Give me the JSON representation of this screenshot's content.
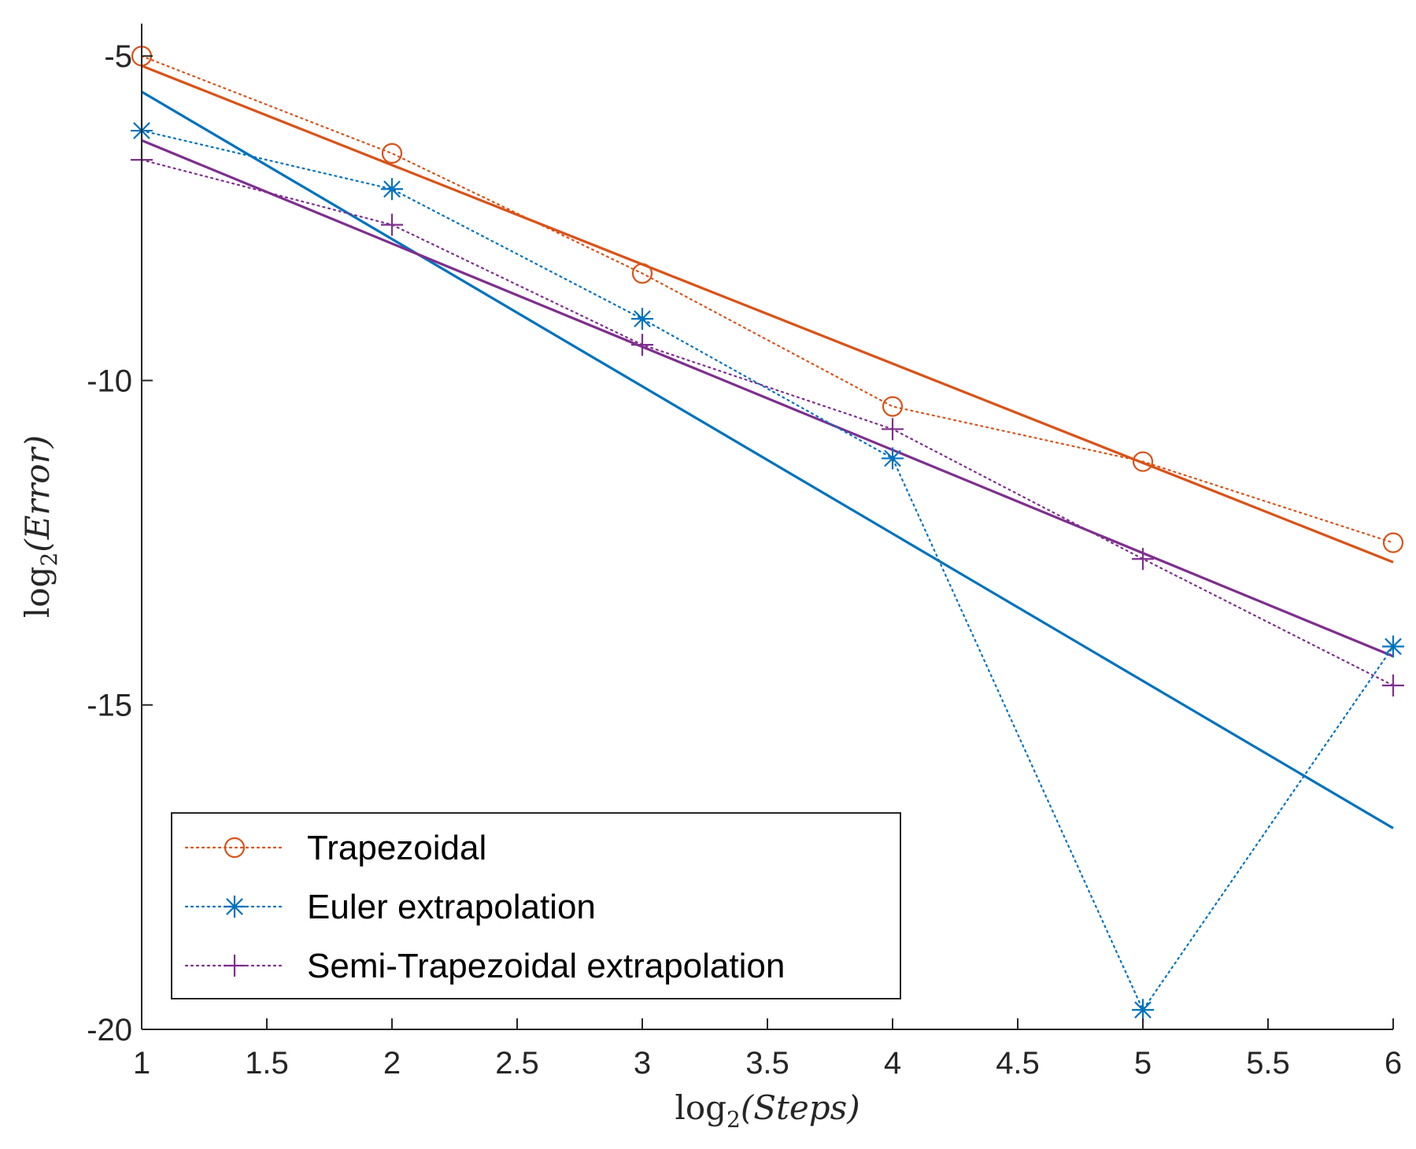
{
  "chart_data": {
    "type": "line",
    "title": "",
    "xlabel": "log_2(Steps)",
    "ylabel": "log_2(Error)",
    "x_axis_title": {
      "prefix": "log",
      "subscript": "2",
      "body": "(Steps)"
    },
    "y_axis_title": {
      "prefix": "log",
      "subscript": "2",
      "body": "(Error)"
    },
    "xlim": [
      1,
      6
    ],
    "ylim": [
      -20,
      -4.5
    ],
    "xticks": [
      1,
      1.5,
      2,
      2.5,
      3,
      3.5,
      4,
      4.5,
      5,
      5.5,
      6
    ],
    "xtick_labels": [
      "1",
      "1.5",
      "2",
      "2.5",
      "3",
      "3.5",
      "4",
      "4.5",
      "5",
      "5.5",
      "6"
    ],
    "yticks": [
      -20,
      -15,
      -10,
      -5
    ],
    "ytick_labels": [
      "-20",
      "-15",
      "-10",
      "-5"
    ],
    "grid": false,
    "legend_position": "bottom-left",
    "x": [
      1,
      2,
      3,
      4,
      5,
      6
    ],
    "series": [
      {
        "name": "Trapezoidal",
        "marker": "circle",
        "color": "#D95319",
        "values": [
          -5.0,
          -6.5,
          -8.35,
          -10.4,
          -11.25,
          -12.5
        ],
        "fit": {
          "x": [
            1,
            6
          ],
          "y": [
            -5.15,
            -12.8
          ]
        }
      },
      {
        "name": "Euler extrapolation",
        "marker": "asterisk",
        "color": "#0072BD",
        "values": [
          -6.15,
          -7.05,
          -9.05,
          -11.2,
          -19.7,
          -14.1
        ],
        "fit": {
          "x": [
            1,
            6
          ],
          "y": [
            -5.55,
            -16.9
          ]
        }
      },
      {
        "name": "Semi-Trapezoidal extrapolation",
        "marker": "plus",
        "color": "#7E2F8E",
        "values": [
          -6.6,
          -7.6,
          -9.45,
          -10.75,
          -12.75,
          -14.7
        ],
        "fit": {
          "x": [
            1,
            6
          ],
          "y": [
            -6.3,
            -14.25
          ]
        }
      }
    ]
  }
}
